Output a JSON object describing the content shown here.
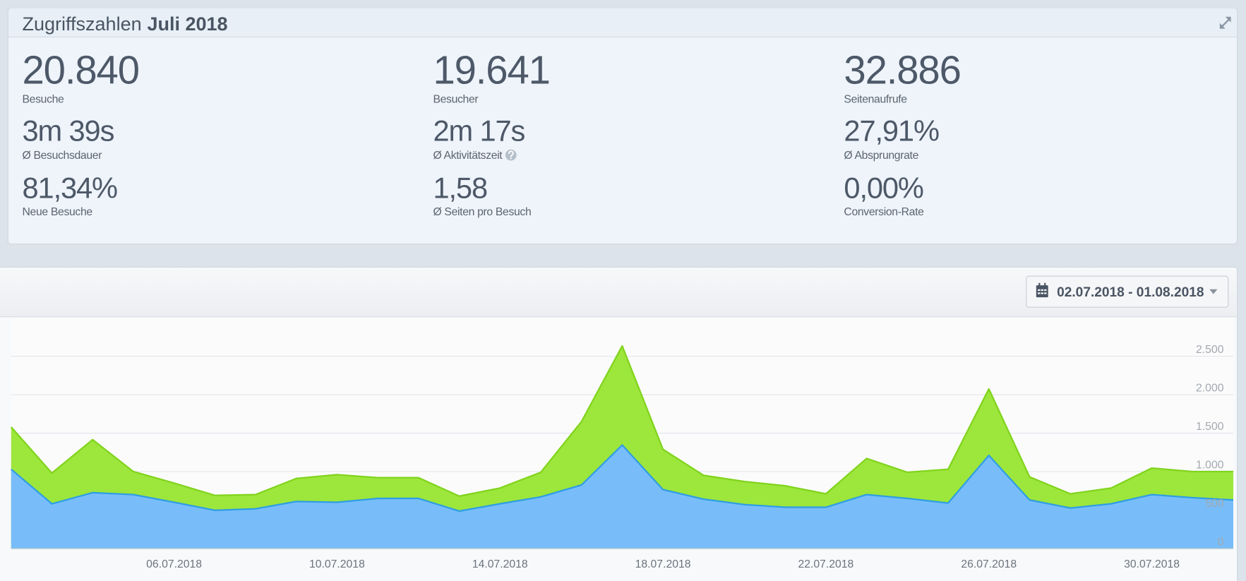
{
  "header": {
    "title": "Zugriffszahlen",
    "title_bold": "Juli 2018"
  },
  "stats": [
    {
      "value": "20.840",
      "label": "Besuche"
    },
    {
      "value": "19.641",
      "label": "Besucher"
    },
    {
      "value": "32.886",
      "label": "Seitenaufrufe"
    },
    {
      "value": "3m 39s",
      "label": "Ø Besuchsdauer"
    },
    {
      "value": "2m 17s",
      "label": "Ø Aktivitätszeit",
      "help": true
    },
    {
      "value": "27,91%",
      "label": "Ø Absprungrate"
    },
    {
      "value": "81,34%",
      "label": "Neue Besuche"
    },
    {
      "value": "1,58",
      "label": "Ø Seiten pro Besuch"
    },
    {
      "value": "0,00%",
      "label": "Conversion-Rate"
    }
  ],
  "date_range": "02.07.2018 - 01.08.2018",
  "chart_data": {
    "type": "area",
    "categories": [
      null,
      null,
      null,
      null,
      "06.07.2018",
      null,
      null,
      null,
      "10.07.2018",
      null,
      null,
      null,
      "14.07.2018",
      null,
      null,
      null,
      "18.07.2018",
      null,
      null,
      null,
      "22.07.2018",
      null,
      null,
      null,
      "26.07.2018",
      null,
      null,
      null,
      "30.07.2018",
      null,
      null
    ],
    "series": [
      {
        "color": "#9de63c",
        "line_color": "#80d41c",
        "values": [
          1580,
          980,
          1415,
          1000,
          850,
          690,
          700,
          910,
          960,
          920,
          920,
          680,
          785,
          990,
          1650,
          2635,
          1290,
          950,
          870,
          815,
          710,
          1170,
          990,
          1030,
          2075,
          930,
          710,
          785,
          1045,
          1000,
          1000
        ]
      },
      {
        "color": "#78bdf9",
        "line_color": "#2f9ee3",
        "values": [
          1030,
          580,
          725,
          700,
          600,
          495,
          515,
          610,
          600,
          650,
          650,
          485,
          580,
          670,
          825,
          1345,
          765,
          640,
          570,
          535,
          535,
          700,
          650,
          590,
          1210,
          630,
          525,
          580,
          700,
          660,
          630
        ]
      }
    ],
    "ylim": [
      0,
      3000
    ],
    "yticks": [
      0,
      500,
      {
        "value": 1000,
        "label": "1.000"
      },
      {
        "value": 1500,
        "label": "1.500"
      },
      {
        "value": 2000,
        "label": "2.000"
      },
      {
        "value": 2500,
        "label": "2.500"
      }
    ],
    "grid": true
  }
}
